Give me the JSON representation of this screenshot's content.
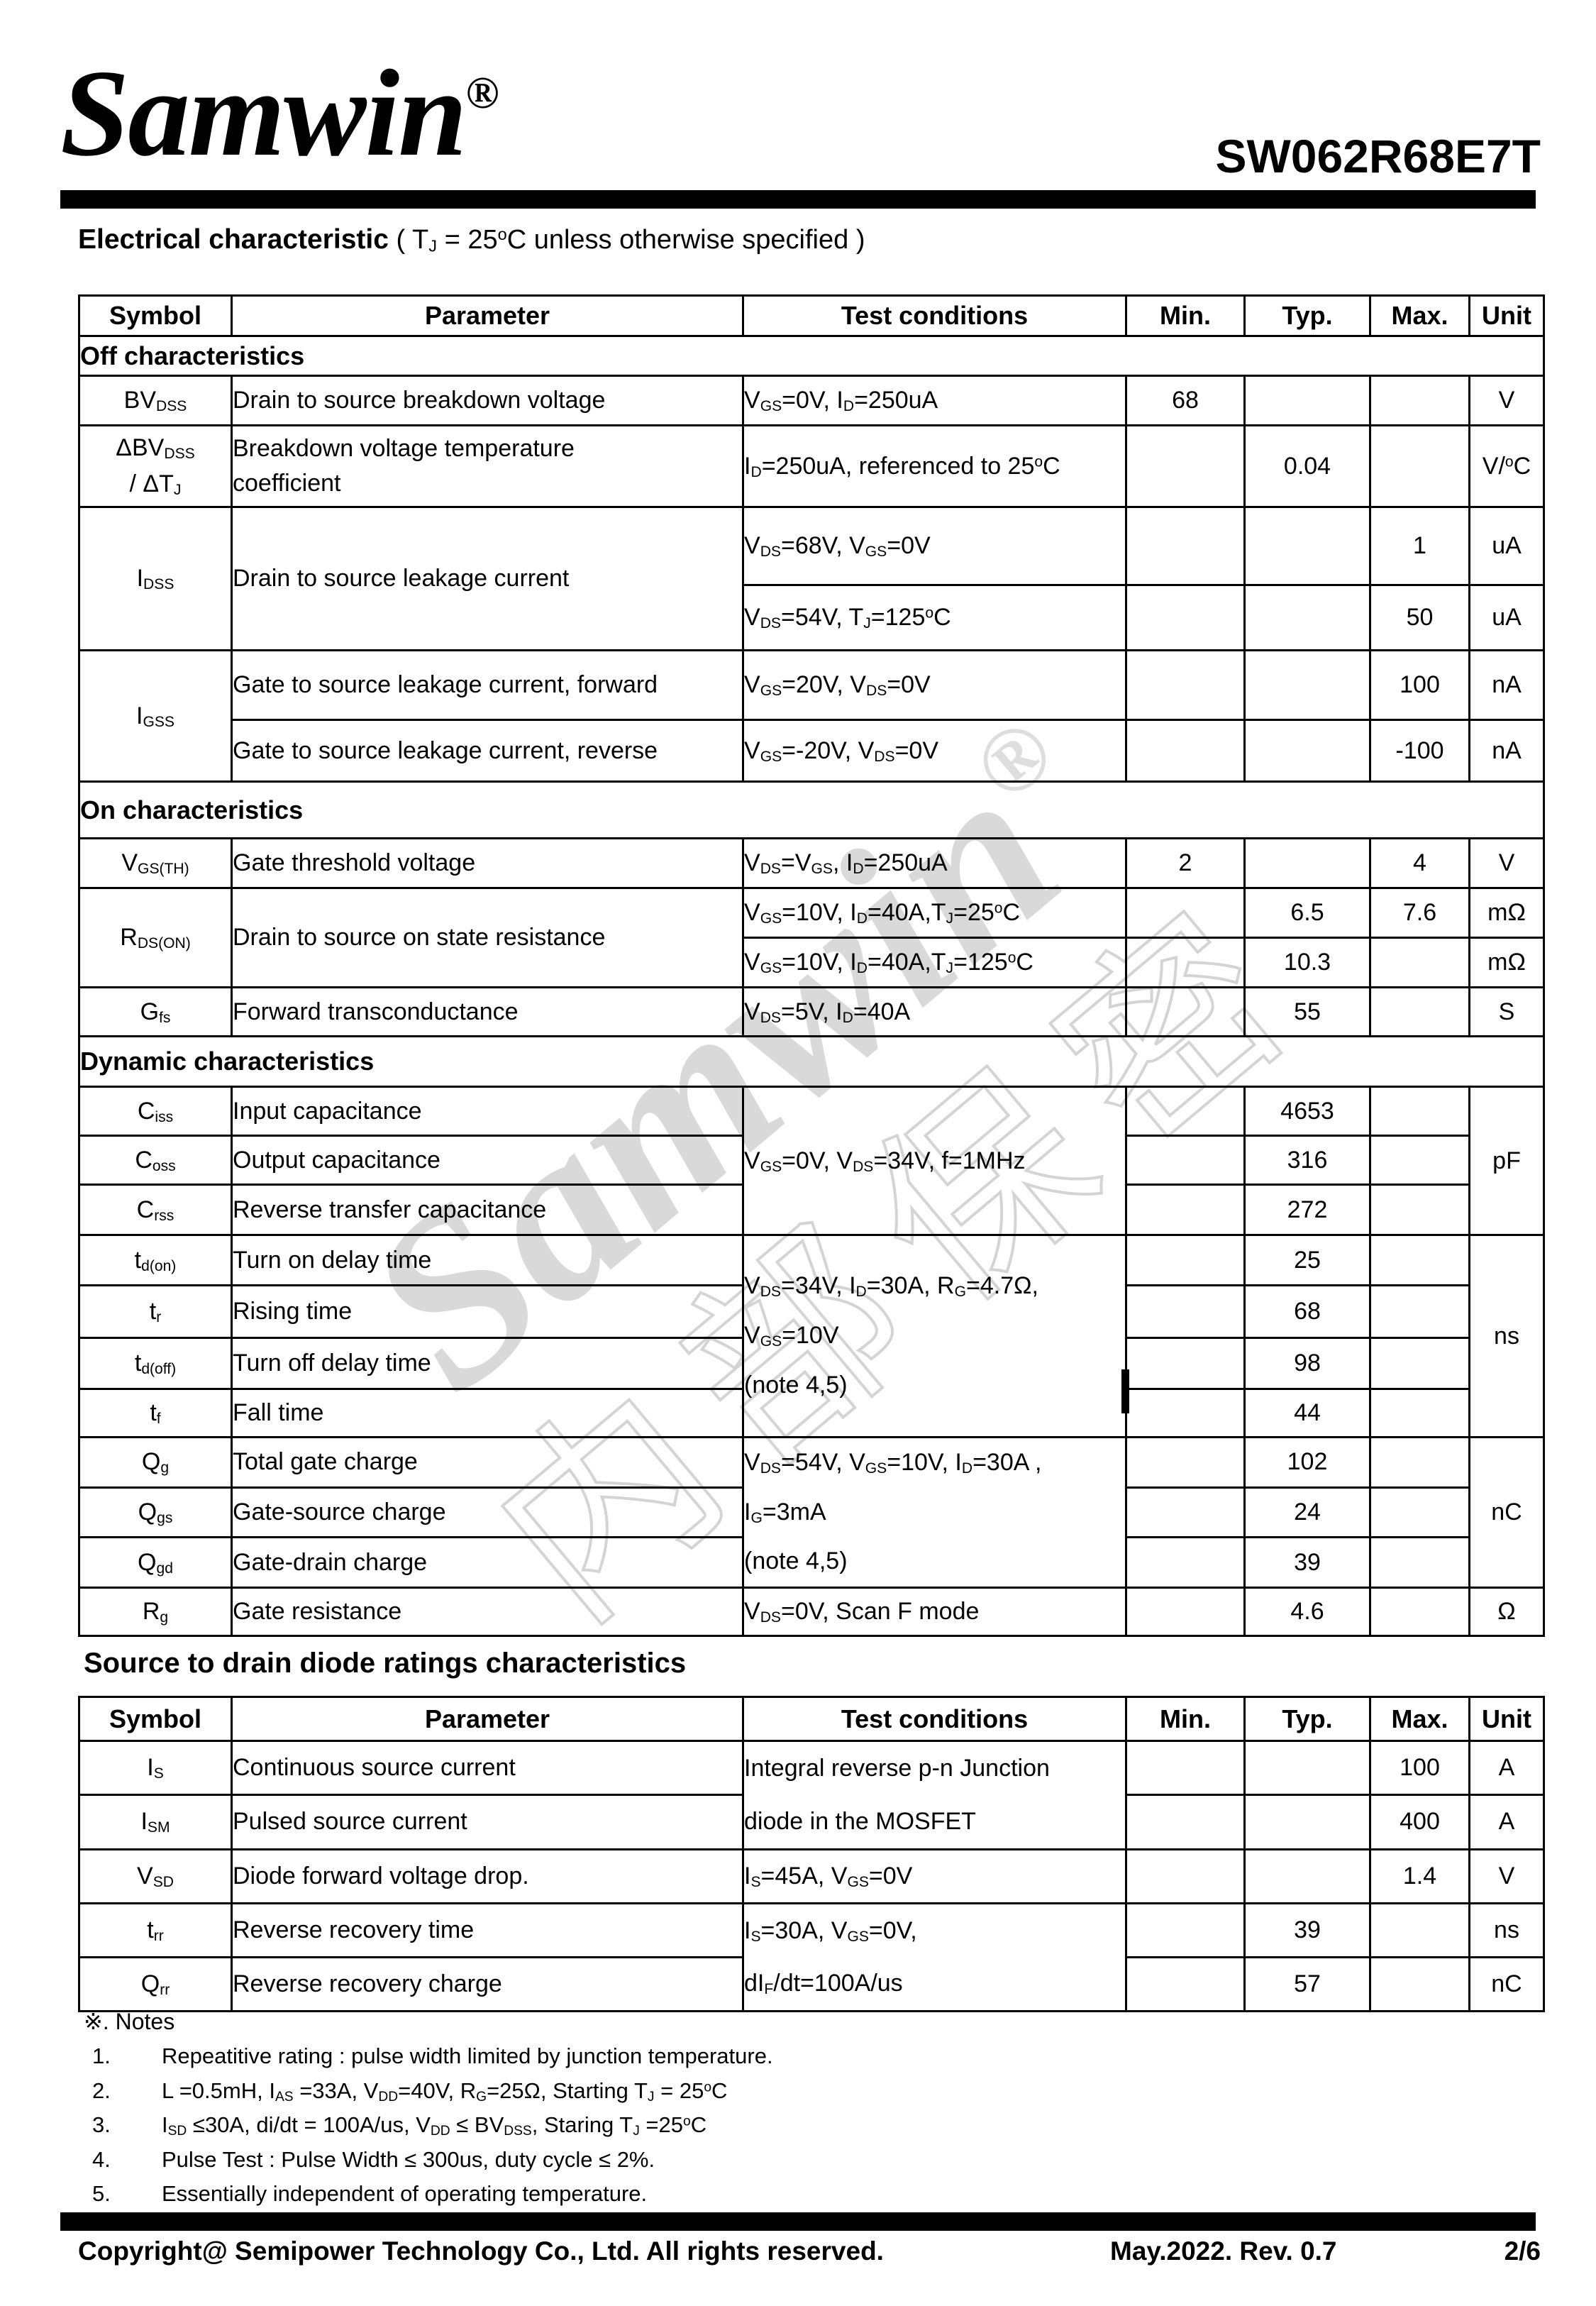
{
  "header": {
    "logo_text": "Samwin",
    "registered_mark": "®",
    "part_number": "SW062R68E7T"
  },
  "title": {
    "lead": "Electrical characteristic",
    "condition": " ( T~J~ = 25^o^C unless otherwise specified )"
  },
  "watermark": {
    "latin": "Samwin",
    "registered": "®",
    "cjk": "内部保密"
  },
  "table1": {
    "headers": {
      "symbol": "Symbol",
      "parameter": "Parameter",
      "test": "Test conditions",
      "min": "Min.",
      "typ": "Typ.",
      "max": "Max.",
      "unit": "Unit"
    },
    "section_off": "Off characteristics",
    "section_on": "On characteristics",
    "section_dynamic": "Dynamic characteristics",
    "rows": {
      "bvdss": {
        "symbol": "BV~DSS~",
        "parameter": "Drain to source breakdown voltage",
        "test": "V~GS~=0V, I~D~=250uA",
        "min": "68",
        "unit": "V"
      },
      "dbvdss": {
        "symbol": "ΔBV~DSS~\n/ ΔT~J~",
        "parameter": "Breakdown voltage temperature\ncoefficient",
        "test": "I~D~=250uA, referenced to 25^o^C",
        "typ": "0.04",
        "unit": "V/^o^C"
      },
      "idss": {
        "symbol": "I~DSS~",
        "parameter": "Drain to source leakage current",
        "a": {
          "test": "V~DS~=68V, V~GS~=0V",
          "max": "1",
          "unit": "uA"
        },
        "b": {
          "test": "V~DS~=54V, T~J~=125^o^C",
          "max": "50",
          "unit": "uA"
        }
      },
      "igss": {
        "symbol": "I~GSS~",
        "a": {
          "parameter": "Gate to source leakage current, forward",
          "test": "V~GS~=20V, V~DS~=0V",
          "max": "100",
          "unit": "nA"
        },
        "b": {
          "parameter": "Gate to source leakage current, reverse",
          "test": "V~GS~=-20V, V~DS~=0V",
          "max": "-100",
          "unit": "nA"
        }
      },
      "vgsth": {
        "symbol": "V~GS(TH)~",
        "parameter": "Gate threshold voltage",
        "test": "V~DS~=V~GS~, I~D~=250uA",
        "min": "2",
        "max": "4",
        "unit": "V"
      },
      "rdson": {
        "symbol": "R~DS(ON)~",
        "parameter": " Drain to source on state resistance",
        "a": {
          "test": "V~GS~=10V, I~D~=40A,T~J~=25^o^C",
          "typ": "6.5",
          "max": "7.6",
          "unit": "mΩ"
        },
        "b": {
          "test": "V~GS~=10V, I~D~=40A,T~J~=125^o^C",
          "typ": "10.3",
          "unit": "mΩ"
        }
      },
      "gfs": {
        "symbol": "G~fs~",
        "parameter": "Forward transconductance",
        "test": "V~DS~=5V, I~D~=40A",
        "typ": "55",
        "unit": "S"
      },
      "cap": {
        "test": "V~GS~=0V, V~DS~=34V, f=1MHz",
        "unit": "pF",
        "ciss": {
          "symbol": "C~iss~",
          "parameter": "Input capacitance",
          "typ": "4653"
        },
        "coss": {
          "symbol": "C~oss~",
          "parameter": "Output capacitance",
          "typ": "316"
        },
        "crss": {
          "symbol": "C~rss~",
          "parameter": "Reverse transfer capacitance",
          "typ": "272"
        }
      },
      "sw": {
        "test": "V~DS~=34V, I~D~=30A, R~G~=4.7Ω,\nV~GS~=10V\n(note 4,5)",
        "unit": "ns",
        "tdon": {
          "symbol": "t~d(on)~",
          "parameter": "Turn on delay time",
          "typ": "25"
        },
        "tr": {
          "symbol": "t~r~",
          "parameter": "Rising time",
          "typ": "68"
        },
        "tdoff": {
          "symbol": "t~d(off)~",
          "parameter": "Turn off delay time",
          "typ": "98"
        },
        "tf": {
          "symbol": "t~f~",
          "parameter": "Fall time",
          "typ": "44"
        }
      },
      "qg": {
        "test": "V~DS~=54V, V~GS~=10V, I~D~=30A ,\n I~G~=3mA\n(note 4,5)",
        "unit": "nC",
        "qg": {
          "symbol": "Q~g~",
          "parameter": "Total gate charge",
          "typ": "102"
        },
        "qgs": {
          "symbol": "Q~gs~",
          "parameter": "Gate-source charge",
          "typ": "24"
        },
        "qgd": {
          "symbol": "Q~gd~",
          "parameter": "Gate-drain charge",
          "typ": "39"
        }
      },
      "rg": {
        "symbol": "R~g~",
        "parameter": "Gate resistance",
        "test": "V~DS~=0V, Scan F mode",
        "typ": "4.6",
        "unit": "Ω"
      }
    }
  },
  "section2_title": "Source to drain diode ratings characteristics",
  "table2": {
    "headers": {
      "symbol": "Symbol",
      "parameter": "Parameter",
      "test": "Test conditions",
      "min": "Min.",
      "typ": "Typ.",
      "max": "Max.",
      "unit": "Unit"
    },
    "rows": {
      "is_ism": {
        "test": "Integral reverse p-n Junction\ndiode in the MOSFET",
        "is": {
          "symbol": "I~S~",
          "parameter": "Continuous source current",
          "max": "100",
          "unit": "A"
        },
        "ism": {
          "symbol": "I~SM~",
          "parameter": "Pulsed source current",
          "max": "400",
          "unit": "A"
        }
      },
      "vsd": {
        "symbol": "V~SD~",
        "parameter": "Diode forward voltage drop.",
        "test": "I~S~=45A, V~GS~=0V",
        "max": "1.4",
        "unit": "V"
      },
      "trr_qrr": {
        "test": "I~S~=30A, V~GS~=0V,\ndI~F~/dt=100A/us",
        "trr": {
          "symbol": "t~rr~",
          "parameter": "Reverse recovery time",
          "typ": "39",
          "unit": "ns"
        },
        "qrr": {
          "symbol": "Q~rr~",
          "parameter": "Reverse recovery charge",
          "typ": "57",
          "unit": "nC"
        }
      }
    }
  },
  "notes": {
    "marker": "※.",
    "title": "Notes",
    "items": [
      {
        "num": "1.",
        "text": "Repeatitive rating : pulse width limited by junction temperature."
      },
      {
        "num": "2.",
        "text": "L =0.5mH, I~AS~ =33A, V~DD~=40V, R~G~=25Ω, Starting T~J~ = 25^o^C"
      },
      {
        "num": "3.",
        "text": "I~SD~ ≤30A, di/dt = 100A/us, V~DD~ ≤ BV~DSS~, Staring T~J~ =25^o^C"
      },
      {
        "num": "4.",
        "text": "Pulse Test : Pulse Width ≤ 300us, duty cycle ≤ 2%."
      },
      {
        "num": "5.",
        "text": "Essentially independent of operating temperature."
      }
    ]
  },
  "footer": {
    "copyright": "Copyright@ Semipower Technology Co., Ltd. All rights reserved.",
    "revision": "May.2022. Rev. 0.7",
    "page": "2/6"
  }
}
